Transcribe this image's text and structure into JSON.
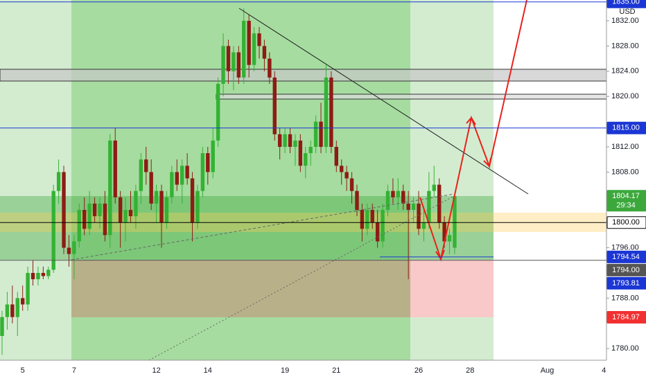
{
  "chart_data": {
    "type": "candlestick",
    "currency": "USD",
    "x": [
      null,
      null,
      null,
      null,
      "5",
      null,
      null,
      null,
      null,
      null,
      null,
      null,
      null,
      null,
      "7",
      null,
      null,
      null,
      null,
      null,
      null,
      null,
      null,
      null,
      null,
      null,
      null,
      null,
      null,
      null,
      "12",
      null,
      null,
      null,
      null,
      null,
      null,
      null,
      null,
      null,
      "14",
      null,
      null,
      null,
      null,
      null,
      null,
      null,
      null,
      null,
      null,
      null,
      null,
      null,
      null,
      "19",
      null,
      null,
      null,
      null,
      null,
      null,
      null,
      null,
      null,
      "21",
      null,
      null,
      null,
      null,
      null,
      null,
      null,
      null,
      null,
      null,
      null,
      null,
      null,
      null,
      null,
      "26",
      null,
      null,
      null,
      null,
      null,
      null,
      null,
      null,
      null,
      "28",
      null,
      null,
      null,
      null,
      null,
      null,
      null,
      null,
      null,
      null,
      null,
      null,
      null,
      null,
      "Aug",
      null,
      null,
      null,
      null,
      null,
      null,
      null,
      null,
      null,
      null,
      "4"
    ],
    "open": [
      1782,
      1785,
      1787,
      1785,
      1788,
      1787,
      1792,
      1791,
      1792,
      1791.5,
      1792.5,
      1805,
      1808,
      1796,
      1795,
      1797,
      1802,
      1799,
      1803,
      1801,
      1803,
      1798,
      1813,
      1804,
      1800,
      1802,
      1801,
      1805,
      1810,
      1808,
      1803,
      1805,
      1800,
      1804,
      1808,
      1806,
      1809,
      1807,
      1800,
      1805,
      1811,
      1808,
      1813,
      1822,
      1828,
      1824,
      1827,
      1823,
      1832,
      1825,
      1830,
      1828,
      1826,
      1823,
      1814,
      1812,
      1814,
      1812,
      1813,
      1809,
      1811,
      1812,
      1816,
      1812,
      1823,
      1812,
      1809,
      1808,
      1807,
      1805,
      1802,
      1799,
      1802,
      1800,
      1797,
      1802,
      1805,
      1804,
      1805,
      1803,
      1802,
      1803,
      1799,
      1800,
      1805,
      1806,
      1800,
      1797,
      1796,
      null,
      null,
      null,
      null,
      null,
      null,
      null,
      null,
      null,
      null,
      null,
      null,
      null,
      null,
      null,
      null,
      null,
      null,
      null,
      null,
      null,
      null,
      null,
      null,
      null,
      null,
      null,
      null,
      null
    ],
    "high": [
      1786,
      1789,
      1790,
      1789,
      1790,
      1793,
      1794,
      1793,
      1793,
      1793,
      1806,
      1810,
      1809,
      1798,
      1798,
      1803,
      1804,
      1805,
      1804,
      1804,
      1805,
      1814,
      1815,
      1805,
      1804,
      1805,
      1806,
      1811,
      1812,
      1810,
      1806,
      1806,
      1805,
      1809,
      1810,
      1810,
      1811,
      1808,
      1806,
      1812,
      1812,
      1815,
      1823,
      1830,
      1829,
      1828,
      1828,
      1834,
      1833,
      1831,
      1831,
      1829,
      1827,
      1824,
      1815,
      1815,
      1815,
      1814,
      1814,
      1812,
      1813,
      1817,
      1819,
      1825,
      1824,
      1813,
      1810,
      1809,
      1808,
      1806,
      1803,
      1803,
      1803,
      1802,
      1803,
      1806,
      1807,
      1807,
      1806,
      1805,
      1804,
      1805,
      1802,
      1808,
      1809,
      1807,
      1801,
      1799,
      1804.5,
      null,
      null,
      null,
      null,
      null,
      null,
      null,
      null,
      null,
      null,
      null,
      null,
      null,
      null,
      null,
      null,
      null,
      null,
      null,
      null,
      null,
      null,
      null,
      null,
      null,
      null,
      null,
      null,
      null
    ],
    "low": [
      1779,
      1783,
      1784,
      1782,
      1786,
      1786,
      1790,
      1790,
      1791,
      1791,
      1792,
      1803,
      1795,
      1793,
      1791,
      1796,
      1798,
      1798,
      1800,
      1799,
      1797,
      1796,
      1803,
      1796,
      1797,
      1800,
      1799,
      1803,
      1806,
      1802,
      1800,
      1796,
      1799,
      1803,
      1805,
      1803,
      1806,
      1797,
      1799,
      1804,
      1806,
      1807,
      1812,
      1820,
      1822,
      1821,
      1822,
      1822,
      1823,
      1824,
      1826,
      1824,
      1822,
      1813,
      1810,
      1811,
      1811,
      1809,
      1808,
      1807,
      1809,
      1811,
      1811,
      1811,
      1811,
      1808,
      1806,
      1805,
      1803,
      1801,
      1797,
      1798,
      1799,
      1796,
      1796,
      1801,
      1803,
      1802,
      1802,
      1791,
      1800,
      1798,
      1797,
      1799,
      1804,
      1799,
      1796,
      1795,
      1795,
      null,
      null,
      null,
      null,
      null,
      null,
      null,
      null,
      null,
      null,
      null,
      null,
      null,
      null,
      null,
      null,
      null,
      null,
      null,
      null,
      null,
      null,
      null,
      null,
      null,
      null,
      null,
      null,
      null
    ],
    "close": [
      1785,
      1787,
      1785,
      1788,
      1787,
      1792,
      1791,
      1792,
      1791.5,
      1792.5,
      1805,
      1808,
      1796,
      1795,
      1797,
      1802,
      1799,
      1803,
      1801,
      1803,
      1798,
      1813,
      1804,
      1800,
      1802,
      1801,
      1805,
      1810,
      1808,
      1803,
      1805,
      1800,
      1804,
      1808,
      1806,
      1809,
      1807,
      1800,
      1805,
      1811,
      1808,
      1813,
      1822,
      1828,
      1824,
      1827,
      1823,
      1832,
      1825,
      1830,
      1828,
      1826,
      1823,
      1814,
      1812,
      1814,
      1812,
      1813,
      1809,
      1811,
      1812,
      1816,
      1812,
      1823,
      1812,
      1809,
      1808,
      1807,
      1805,
      1802,
      1799,
      1802,
      1800,
      1797,
      1802,
      1805,
      1804,
      1805,
      1803,
      1802,
      1803,
      1799,
      1800,
      1805,
      1806,
      1800,
      1797,
      1798,
      1804.17,
      null,
      null,
      null,
      null,
      null,
      null,
      null,
      null,
      null,
      null,
      null,
      null,
      null,
      null,
      null,
      null,
      null,
      null,
      null,
      null,
      null,
      null,
      null,
      null,
      null,
      null,
      null,
      null,
      null
    ],
    "up_color": "#34b234",
    "down_color": "#8e1c14",
    "ylim": [
      1778.15,
      1835.3
    ],
    "yticks": [
      {
        "value": 1780,
        "label": "1780.00"
      },
      {
        "value": 1788,
        "label": "1788.00"
      },
      {
        "value": 1796,
        "label": "1796.00"
      },
      {
        "value": 1808,
        "label": "1808.00"
      },
      {
        "value": 1812,
        "label": "1812.00"
      },
      {
        "value": 1820,
        "label": "1820.00"
      },
      {
        "value": 1824,
        "label": "1824.00"
      },
      {
        "value": 1828,
        "label": "1828.00"
      },
      {
        "value": 1832,
        "label": "1832.00"
      }
    ],
    "price_tags": [
      {
        "value": 1835,
        "label": "1835.00",
        "color": "#1b36d4",
        "text_color": "#ffffff"
      },
      {
        "value": 1815,
        "label": "1815.00",
        "color": "#1b36d4",
        "text_color": "#ffffff"
      },
      {
        "value": 1804.17,
        "label": "1804.17",
        "countdown": "29:34",
        "color": "#3ca83c",
        "text_color": "#ffffff"
      },
      {
        "value": 1800,
        "label": "1800.00",
        "color": "#ffffff",
        "text_color": "#000000"
      },
      {
        "value": 1794.54,
        "label": "1794.54",
        "color": "#1b36d4",
        "text_color": "#ffffff"
      },
      {
        "value": 1794,
        "label": "1794.00",
        "color": "#555555",
        "text_color": "#ffffff"
      },
      {
        "value": 1793.81,
        "label": "1793.81",
        "color": "#1b36d4",
        "text_color": "#ffffff"
      },
      {
        "value": 1784.97,
        "label": "1784.97",
        "color": "#f23030",
        "text_color": "#ffffff"
      }
    ]
  }
}
